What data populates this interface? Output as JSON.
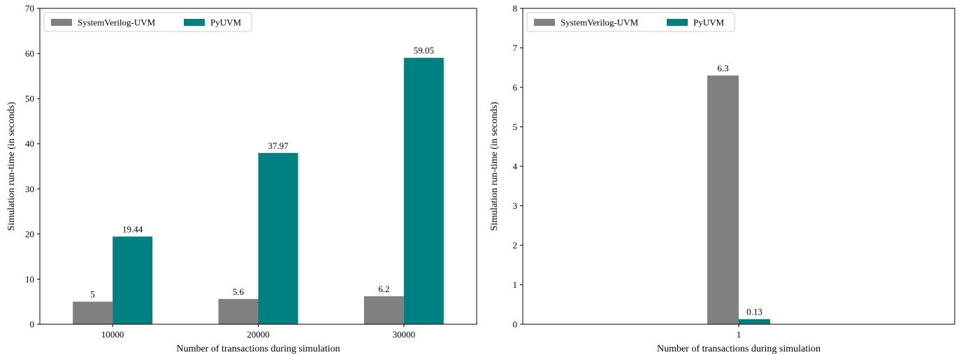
{
  "chart_data": [
    {
      "type": "bar",
      "xlabel": "Number of transactions during simulation",
      "ylabel": "Simulation run-time (in seconds)",
      "categories": [
        "10000",
        "20000",
        "30000"
      ],
      "ylim": [
        0,
        70
      ],
      "yticks": [
        0,
        10,
        20,
        30,
        40,
        50,
        60,
        70
      ],
      "legend": "top-left",
      "grid": false,
      "series": [
        {
          "name": "SystemVerilog-UVM",
          "color": "#808080",
          "values": [
            5,
            5.6,
            6.2
          ],
          "labels": [
            "5",
            "5.6",
            "6.2"
          ]
        },
        {
          "name": "PyUVM",
          "color": "#008080",
          "values": [
            19.44,
            37.97,
            59.05
          ],
          "labels": [
            "19.44",
            "37.97",
            "59.05"
          ]
        }
      ]
    },
    {
      "type": "bar",
      "xlabel": "Number of transactions during simulation",
      "ylabel": "Simulation run-time (in seconds)",
      "categories": [
        "1"
      ],
      "ylim": [
        0,
        8
      ],
      "yticks": [
        0,
        1,
        2,
        3,
        4,
        5,
        6,
        7,
        8
      ],
      "legend": "top-left",
      "grid": false,
      "series": [
        {
          "name": "SystemVerilog-UVM",
          "color": "#808080",
          "values": [
            6.3
          ],
          "labels": [
            "6.3"
          ]
        },
        {
          "name": "PyUVM",
          "color": "#008080",
          "values": [
            0.13
          ],
          "labels": [
            "0.13"
          ]
        }
      ]
    }
  ]
}
